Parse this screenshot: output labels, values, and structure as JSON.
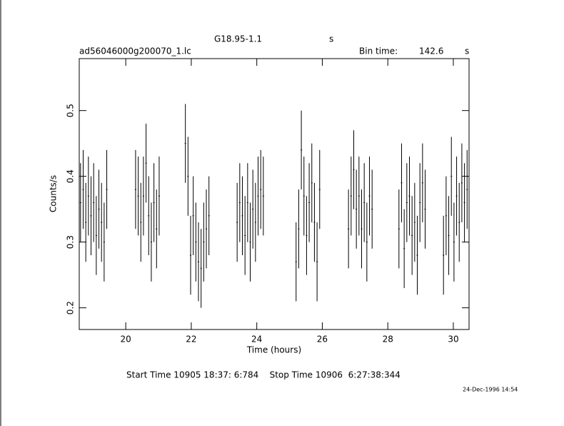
{
  "chart_data": {
    "type": "errorbar",
    "title": "G18.95-1.1",
    "title_unit": "s",
    "subtitle": "ad56046000g200070_1.lc",
    "bin_time_label": "Bin time:",
    "bin_time": "142.6",
    "bin_time_unit": "s",
    "xlabel": "Time (hours)",
    "ylabel": "Counts/s",
    "footer": "Start Time 10905 18:37: 6:784    Stop Time 10906  6:27:38:344",
    "date": "24-Dec-1996 14:54",
    "xlim": [
      18.58,
      30.48
    ],
    "ylim": [
      0.167,
      0.579
    ],
    "xticks": [
      20,
      22,
      24,
      26,
      28,
      30
    ],
    "yticks": [
      0.2,
      0.3,
      0.4,
      0.5
    ],
    "x": [
      18.62,
      18.7,
      18.78,
      18.86,
      18.94,
      19.02,
      19.1,
      19.18,
      19.26,
      19.34,
      19.42,
      20.3,
      20.38,
      20.46,
      20.54,
      20.62,
      20.7,
      20.78,
      20.86,
      20.94,
      21.02,
      21.82,
      21.9,
      21.98,
      22.06,
      22.14,
      22.22,
      22.3,
      22.38,
      22.46,
      22.54,
      23.4,
      23.48,
      23.56,
      23.64,
      23.72,
      23.8,
      23.88,
      23.96,
      24.04,
      24.12,
      24.2,
      25.2,
      25.28,
      25.36,
      25.44,
      25.52,
      25.6,
      25.68,
      25.76,
      25.84,
      25.92,
      26.8,
      26.88,
      26.96,
      27.04,
      27.12,
      27.2,
      27.28,
      27.36,
      27.44,
      27.52,
      28.34,
      28.42,
      28.5,
      28.58,
      28.66,
      28.74,
      28.82,
      28.9,
      28.98,
      29.06,
      29.14,
      29.7,
      29.78,
      29.86,
      29.94,
      30.02,
      30.1,
      30.18,
      30.26,
      30.34,
      30.42
    ],
    "series": [
      {
        "color": "#000000",
        "values": [
          0.36,
          0.38,
          0.33,
          0.37,
          0.34,
          0.36,
          0.31,
          0.35,
          0.33,
          0.3,
          0.38,
          0.38,
          0.37,
          0.33,
          0.37,
          0.42,
          0.34,
          0.3,
          0.36,
          0.32,
          0.37,
          0.45,
          0.4,
          0.28,
          0.34,
          0.3,
          0.27,
          0.26,
          0.3,
          0.32,
          0.34,
          0.33,
          0.36,
          0.34,
          0.31,
          0.36,
          0.3,
          0.35,
          0.33,
          0.37,
          0.38,
          0.37,
          0.27,
          0.32,
          0.44,
          0.37,
          0.31,
          0.36,
          0.39,
          0.33,
          0.27,
          0.38,
          0.32,
          0.37,
          0.41,
          0.35,
          0.37,
          0.32,
          0.36,
          0.3,
          0.37,
          0.35,
          0.32,
          0.39,
          0.29,
          0.36,
          0.37,
          0.31,
          0.33,
          0.28,
          0.36,
          0.39,
          0.35,
          0.28,
          0.34,
          0.31,
          0.4,
          0.3,
          0.37,
          0.33,
          0.39,
          0.36,
          0.38
        ],
        "errors": [
          0.06,
          0.06,
          0.06,
          0.06,
          0.06,
          0.06,
          0.06,
          0.06,
          0.06,
          0.06,
          0.06,
          0.06,
          0.06,
          0.06,
          0.06,
          0.06,
          0.06,
          0.06,
          0.06,
          0.06,
          0.06,
          0.06,
          0.06,
          0.06,
          0.06,
          0.06,
          0.06,
          0.06,
          0.06,
          0.06,
          0.06,
          0.06,
          0.06,
          0.06,
          0.06,
          0.06,
          0.06,
          0.06,
          0.06,
          0.06,
          0.06,
          0.06,
          0.06,
          0.06,
          0.06,
          0.06,
          0.06,
          0.06,
          0.06,
          0.06,
          0.06,
          0.06,
          0.06,
          0.06,
          0.06,
          0.06,
          0.06,
          0.06,
          0.06,
          0.06,
          0.06,
          0.06,
          0.06,
          0.06,
          0.06,
          0.06,
          0.06,
          0.06,
          0.06,
          0.06,
          0.06,
          0.06,
          0.06,
          0.06,
          0.06,
          0.06,
          0.06,
          0.06,
          0.06,
          0.06,
          0.06,
          0.06,
          0.06
        ]
      }
    ]
  }
}
